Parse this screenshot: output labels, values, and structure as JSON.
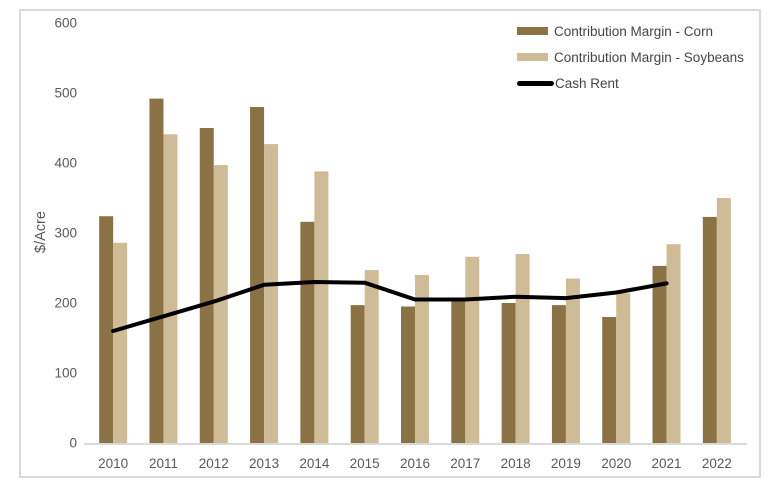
{
  "chart_data": {
    "type": "bar",
    "subtype": "clustered-bars-with-line-overlay",
    "title": "",
    "xlabel": "",
    "ylabel": "$/Acre",
    "ylim": [
      0,
      600
    ],
    "yticks": [
      0,
      100,
      200,
      300,
      400,
      500,
      600
    ],
    "grid": false,
    "legend_position": "top-right",
    "categories": [
      "2010",
      "2011",
      "2012",
      "2013",
      "2014",
      "2015",
      "2016",
      "2017",
      "2018",
      "2019",
      "2020",
      "2021",
      "2022"
    ],
    "bar_series": [
      {
        "name": "Contribution Margin - Corn",
        "color": "#8b7245",
        "values": [
          324,
          492,
          450,
          480,
          316,
          197,
          195,
          203,
          200,
          197,
          180,
          253,
          323
        ]
      },
      {
        "name": "Contribution Margin - Soybeans",
        "color": "#cfbb95",
        "values": [
          286,
          441,
          397,
          427,
          388,
          247,
          240,
          266,
          270,
          235,
          214,
          284,
          350
        ]
      }
    ],
    "line_series": [
      {
        "name": "Cash Rent",
        "color": "#000000",
        "values": [
          160,
          181,
          202,
          226,
          230,
          229,
          205,
          205,
          209,
          207,
          215,
          228,
          null
        ]
      }
    ]
  },
  "colors": {
    "axis_text": "#595959",
    "axis_line": "#d9d9d9",
    "frame_border": "#d9d9d9",
    "background": "#ffffff"
  }
}
